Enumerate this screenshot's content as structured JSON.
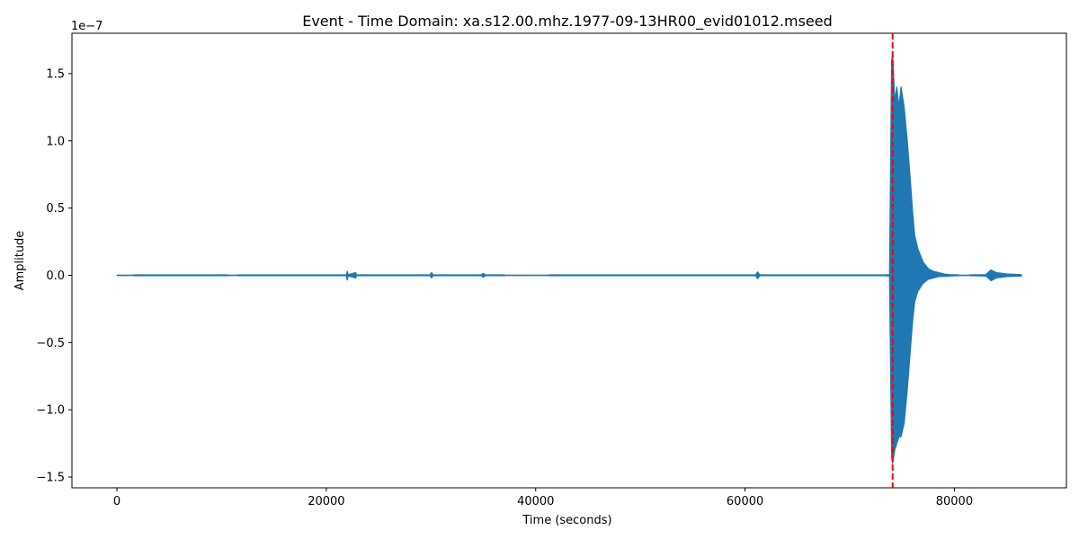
{
  "chart_data": {
    "type": "line",
    "title": "Event - Time Domain: xa.s12.00.mhz.1977-09-13HR00_evid01012.mseed",
    "xlabel": "Time (seconds)",
    "ylabel": "Amplitude",
    "y_offset_text": "1e−7",
    "xlim": [
      -4300,
      90700
    ],
    "ylim": [
      -1.58e-07,
      1.8e-07
    ],
    "x_ticks": [
      0,
      20000,
      40000,
      60000,
      80000
    ],
    "x_tick_labels": [
      "0",
      "20000",
      "40000",
      "60000",
      "80000"
    ],
    "y_ticks": [
      -1.5e-07,
      -1e-07,
      -5e-08,
      0,
      5e-08,
      1e-07,
      1.5e-07
    ],
    "y_tick_labels": [
      "−1.5",
      "−1.0",
      "−0.5",
      "0.0",
      "0.5",
      "1.0",
      "1.5"
    ],
    "grid": false,
    "series": [
      {
        "color": "#1f77b4",
        "type": "envelope",
        "x": [
          0,
          1500,
          1600,
          10600,
          10700,
          11500,
          11600,
          21900,
          22000,
          22100,
          22800,
          22900,
          29900,
          30050,
          30200,
          34800,
          35000,
          35200,
          37000,
          37100,
          41200,
          41300,
          61000,
          61200,
          61400,
          73300,
          73800,
          74000,
          74100,
          74300,
          74500,
          74700,
          74900,
          75200,
          75500,
          75800,
          76000,
          76200,
          76500,
          77000,
          77500,
          78000,
          78500,
          79000,
          79500,
          80000,
          80400,
          80500,
          81400,
          81500,
          83000,
          83500,
          84000,
          84500,
          85000,
          86400
        ],
        "upper": [
          0,
          0,
          3e-10,
          3e-10,
          0,
          0,
          3e-10,
          3e-10,
          3e-09,
          5e-10,
          2e-09,
          3e-10,
          3e-10,
          2e-09,
          3e-10,
          3e-10,
          1.5e-09,
          3e-10,
          3e-10,
          0,
          0,
          3e-10,
          3e-10,
          2.5e-09,
          3e-10,
          3e-10,
          5e-10,
          1.6e-07,
          1.65e-07,
          1.3e-07,
          1.4e-07,
          1.25e-07,
          1.4e-07,
          1.25e-07,
          1e-07,
          7e-08,
          4.8e-08,
          3e-08,
          2e-08,
          1e-08,
          5e-09,
          3e-09,
          2e-09,
          1e-09,
          5e-10,
          4e-10,
          3e-10,
          0,
          0,
          3e-10,
          5e-10,
          4e-09,
          2e-09,
          1.5e-09,
          1e-09,
          5e-10
        ],
        "lower": [
          0,
          0,
          -3e-10,
          -3e-10,
          0,
          0,
          -3e-10,
          -3e-10,
          -3.5e-09,
          -5e-10,
          -2e-09,
          -3e-10,
          -3e-10,
          -2e-09,
          -3e-10,
          -3e-10,
          -1.5e-09,
          -3e-10,
          -3e-10,
          0,
          0,
          -3e-10,
          -3e-10,
          -2.5e-09,
          -3e-10,
          -3e-10,
          -5e-10,
          -1.35e-07,
          -1.4e-07,
          -1.3e-07,
          -1.25e-07,
          -1.2e-07,
          -1.2e-07,
          -1.1e-07,
          -8.5e-08,
          -5.5e-08,
          -3.5e-08,
          -2e-08,
          -1.2e-08,
          -6e-09,
          -3e-09,
          -2e-09,
          -1e-09,
          -8e-10,
          -5e-10,
          -4e-10,
          -3e-10,
          0,
          0,
          -3e-10,
          -5e-10,
          -4e-09,
          -2e-09,
          -1.5e-09,
          -1e-09,
          -5e-10
        ]
      }
    ],
    "annotations": [
      {
        "type": "vline",
        "x": 74100,
        "color": "#ff0000",
        "style": "dashed"
      }
    ]
  }
}
